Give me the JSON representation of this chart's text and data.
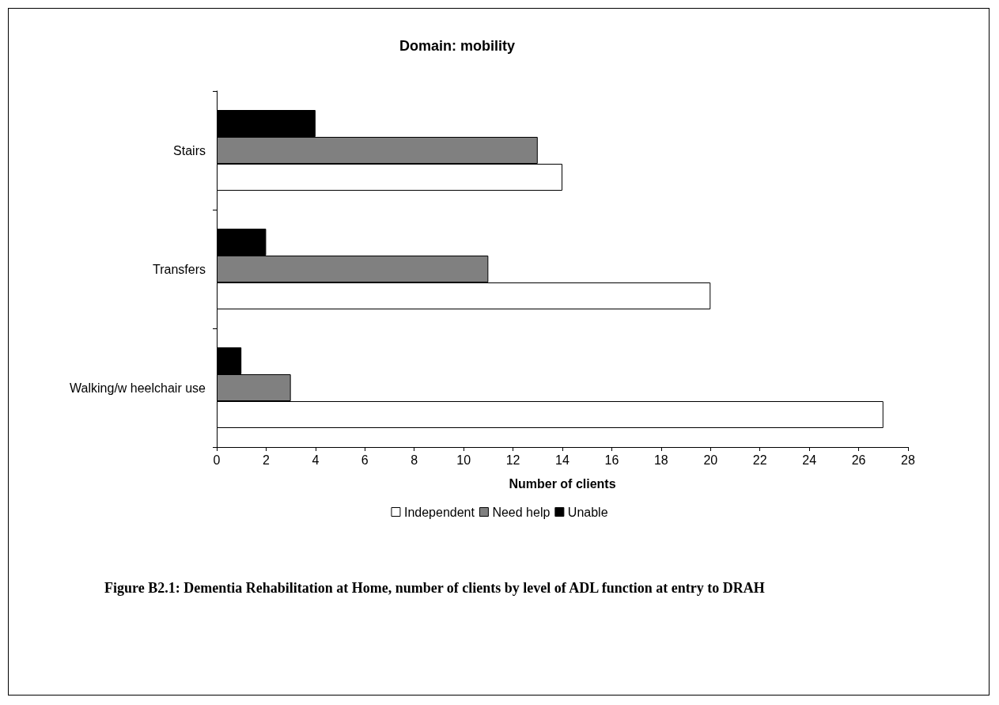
{
  "chart_data": {
    "type": "bar",
    "orientation": "horizontal",
    "title": "Domain: mobility",
    "xlabel": "Number of clients",
    "categories": [
      "Stairs",
      "Transfers",
      "Walking/w heelchair use"
    ],
    "series": [
      {
        "name": "Independent",
        "color": "#ffffff",
        "values": [
          14,
          20,
          27
        ]
      },
      {
        "name": "Need help",
        "color": "#808080",
        "values": [
          13,
          11,
          3
        ]
      },
      {
        "name": "Unable",
        "color": "#000000",
        "values": [
          4,
          2,
          1
        ]
      }
    ],
    "xlim": [
      0,
      28
    ],
    "xticks": [
      0,
      2,
      4,
      6,
      8,
      10,
      12,
      14,
      16,
      18,
      20,
      22,
      24,
      26,
      28
    ],
    "grid": false,
    "legend": "bottom",
    "annotations": [
      "Figure B2.1: Dementia Rehabilitation at Home, number of clients by level of ADL function at entry to DRAH"
    ]
  }
}
